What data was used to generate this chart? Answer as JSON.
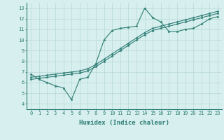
{
  "line1_x": [
    0,
    1,
    2,
    3,
    4,
    5,
    6,
    7,
    8,
    9,
    10,
    11,
    12,
    13,
    14,
    15,
    16,
    17,
    18,
    19,
    20,
    21,
    22,
    23
  ],
  "line1_y": [
    6.8,
    6.3,
    6.0,
    5.7,
    5.5,
    4.4,
    6.3,
    6.5,
    7.8,
    10.0,
    10.9,
    11.1,
    11.2,
    11.3,
    13.0,
    12.1,
    11.7,
    10.8,
    10.8,
    11.0,
    11.1,
    11.5,
    12.0,
    12.2
  ],
  "line2_x": [
    0,
    1,
    2,
    3,
    4,
    5,
    6,
    7,
    8,
    9,
    10,
    11,
    12,
    13,
    14,
    15,
    16,
    17,
    18,
    19,
    20,
    21,
    22,
    23
  ],
  "line2_y": [
    6.5,
    6.6,
    6.7,
    6.8,
    6.9,
    7.0,
    7.1,
    7.3,
    7.7,
    8.2,
    8.7,
    9.2,
    9.7,
    10.2,
    10.7,
    11.1,
    11.3,
    11.5,
    11.7,
    11.9,
    12.1,
    12.3,
    12.5,
    12.7
  ],
  "line3_x": [
    0,
    1,
    2,
    3,
    4,
    5,
    6,
    7,
    8,
    9,
    10,
    11,
    12,
    13,
    14,
    15,
    16,
    17,
    18,
    19,
    20,
    21,
    22,
    23
  ],
  "line3_y": [
    6.3,
    6.4,
    6.5,
    6.6,
    6.7,
    6.8,
    6.9,
    7.1,
    7.5,
    8.0,
    8.5,
    9.0,
    9.5,
    10.0,
    10.5,
    10.9,
    11.1,
    11.3,
    11.5,
    11.7,
    11.9,
    12.1,
    12.3,
    12.5
  ],
  "line_color": "#2d7d74",
  "marker": "*",
  "markersize": 2.5,
  "xlabel": "Humidex (Indice chaleur)",
  "xlabel_fontsize": 6.5,
  "xlim": [
    -0.5,
    23.5
  ],
  "ylim": [
    3.5,
    13.5
  ],
  "yticks": [
    4,
    5,
    6,
    7,
    8,
    9,
    10,
    11,
    12,
    13
  ],
  "xticks": [
    0,
    1,
    2,
    3,
    4,
    5,
    6,
    7,
    8,
    9,
    10,
    11,
    12,
    13,
    14,
    15,
    16,
    17,
    18,
    19,
    20,
    21,
    22,
    23
  ],
  "bg_color": "#d7efee",
  "grid_color": "#b5d9d6",
  "tick_fontsize": 5.0,
  "linewidth": 0.8
}
